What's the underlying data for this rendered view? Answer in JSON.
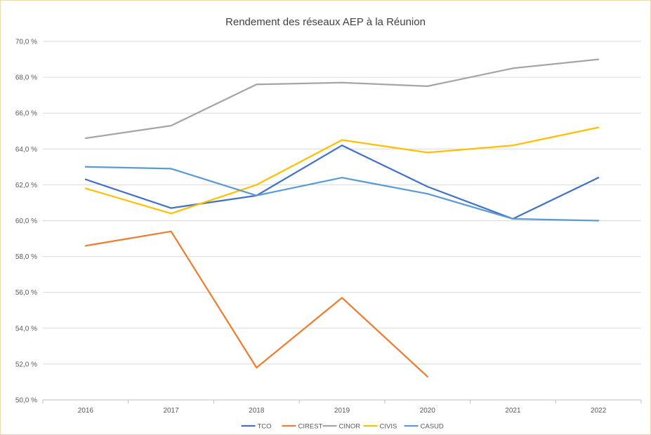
{
  "chart_data": {
    "type": "line",
    "title": "Rendement des réseaux AEP à la Réunion",
    "xlabel": "",
    "ylabel": "",
    "categories": [
      "2016",
      "2017",
      "2018",
      "2019",
      "2020",
      "2021",
      "2022"
    ],
    "ylim": [
      50.0,
      70.0
    ],
    "y_ticks": [
      "50,0 %",
      "52,0 %",
      "54,0 %",
      "56,0 %",
      "58,0 %",
      "60,0 %",
      "62,0 %",
      "64,0 %",
      "66,0 %",
      "68,0 %",
      "70,0 %"
    ],
    "grid": true,
    "legend_position": "bottom",
    "series": [
      {
        "name": "TCO",
        "color": "#4472C4",
        "values": [
          62.3,
          60.7,
          61.4,
          64.2,
          61.9,
          60.1,
          62.4
        ]
      },
      {
        "name": "CIREST",
        "color": "#ED7D31",
        "values": [
          58.6,
          59.4,
          51.8,
          55.7,
          51.3,
          null,
          null
        ]
      },
      {
        "name": "CINOR",
        "color": "#A5A5A5",
        "values": [
          64.6,
          65.3,
          67.6,
          67.7,
          67.5,
          68.5,
          69.0
        ]
      },
      {
        "name": "CIVIS",
        "color": "#FFC000",
        "values": [
          61.8,
          60.4,
          62.0,
          64.5,
          63.8,
          64.2,
          65.2
        ]
      },
      {
        "name": "CASUD",
        "color": "#5B9BD5",
        "values": [
          63.0,
          62.9,
          61.4,
          62.4,
          61.5,
          60.1,
          60.0
        ]
      }
    ]
  }
}
